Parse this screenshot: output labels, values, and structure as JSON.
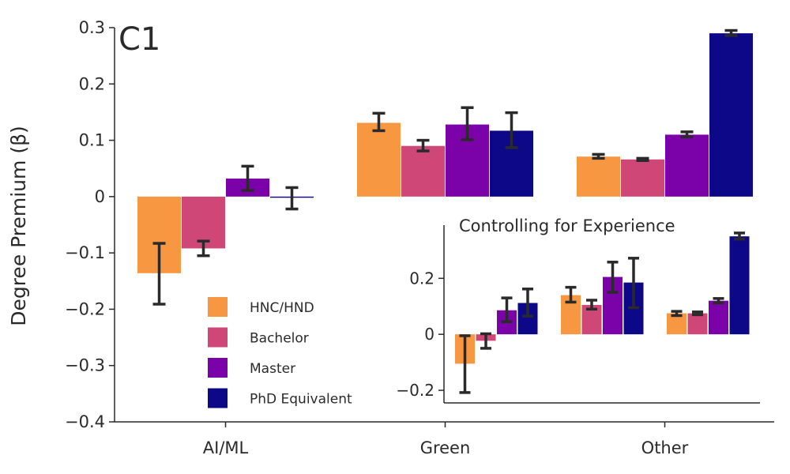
{
  "chart_data": [
    {
      "type": "bar",
      "panel_label": "C1",
      "title": "",
      "xlabel": "",
      "ylabel": "Degree Premium (β)",
      "ylim": [
        -0.4,
        0.3
      ],
      "yticks": [
        -0.4,
        -0.3,
        -0.2,
        -0.1,
        0,
        0.1,
        0.2,
        0.3
      ],
      "ytick_labels": [
        "−0.4",
        "−0.3",
        "−0.2",
        "−0.1",
        "0",
        "0.1",
        "0.2",
        "0.3"
      ],
      "categories": [
        "AI/ML",
        "Green",
        "Other"
      ],
      "legend_position": "bottom-left",
      "grid": false,
      "series": [
        {
          "name": "HNC/HND",
          "color": "#F79741",
          "values": [
            -0.136,
            0.131,
            0.071
          ],
          "err_low": [
            -0.191,
            0.117,
            0.068
          ],
          "err_high": [
            -0.083,
            0.148,
            0.075
          ]
        },
        {
          "name": "Bachelor",
          "color": "#CF4776",
          "values": [
            -0.092,
            0.09,
            0.066
          ],
          "err_low": [
            -0.105,
            0.081,
            0.064
          ],
          "err_high": [
            -0.079,
            0.1,
            0.068
          ]
        },
        {
          "name": "Master",
          "color": "#7B02A8",
          "values": [
            0.032,
            0.128,
            0.11
          ],
          "err_low": [
            0.011,
            0.101,
            0.106
          ],
          "err_high": [
            0.054,
            0.158,
            0.115
          ]
        },
        {
          "name": "PhD Equivalent",
          "color": "#0D0887",
          "values": [
            -0.002,
            0.117,
            0.29
          ],
          "err_low": [
            -0.022,
            0.087,
            0.286
          ],
          "err_high": [
            0.016,
            0.149,
            0.295
          ]
        }
      ]
    },
    {
      "type": "bar",
      "title": "Controlling for Experience",
      "xlabel": "",
      "ylabel": "",
      "ylim": [
        -0.245,
        0.39
      ],
      "yticks": [
        -0.2,
        0,
        0.2
      ],
      "ytick_labels": [
        "−0.2",
        "0",
        "0.2"
      ],
      "categories": [
        "AI/ML",
        "Green",
        "Other"
      ],
      "series": [
        {
          "name": "HNC/HND",
          "color": "#F79741",
          "values": [
            -0.105,
            0.14,
            0.075
          ],
          "err_low": [
            -0.208,
            0.115,
            0.067
          ],
          "err_high": [
            -0.005,
            0.168,
            0.082
          ]
        },
        {
          "name": "Bachelor",
          "color": "#CF4776",
          "values": [
            -0.023,
            0.105,
            0.075
          ],
          "err_low": [
            -0.05,
            0.09,
            0.07
          ],
          "err_high": [
            0.002,
            0.122,
            0.08
          ]
        },
        {
          "name": "Master",
          "color": "#7B02A8",
          "values": [
            0.086,
            0.205,
            0.12
          ],
          "err_low": [
            0.045,
            0.15,
            0.112
          ],
          "err_high": [
            0.13,
            0.258,
            0.128
          ]
        },
        {
          "name": "PhD Equivalent",
          "color": "#0D0887",
          "values": [
            0.112,
            0.185,
            0.35
          ],
          "err_low": [
            0.065,
            0.095,
            0.34
          ],
          "err_high": [
            0.162,
            0.272,
            0.362
          ]
        }
      ]
    }
  ]
}
